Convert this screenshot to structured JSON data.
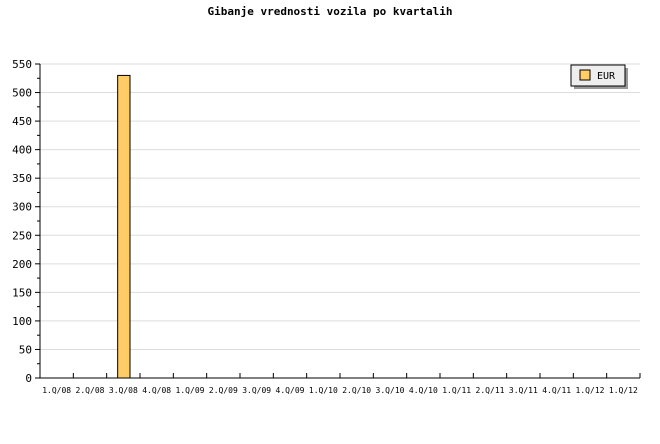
{
  "chart_data": {
    "type": "bar",
    "title": "Gibanje vrednosti vozila po kvartalih",
    "categories": [
      "1.Q/08",
      "2.Q/08",
      "3.Q/08",
      "4.Q/08",
      "1.Q/09",
      "2.Q/09",
      "3.Q/09",
      "4.Q/09",
      "1.Q/10",
      "2.Q/10",
      "3.Q/10",
      "4.Q/10",
      "1.Q/11",
      "2.Q/11",
      "3.Q/11",
      "4.Q/11",
      "1.Q/12",
      "1.Q/12"
    ],
    "series": [
      {
        "name": "EUR",
        "values": [
          0,
          0,
          530,
          0,
          0,
          0,
          0,
          0,
          0,
          0,
          0,
          0,
          0,
          0,
          0,
          0,
          0,
          0
        ],
        "color": "#ffcc66"
      }
    ],
    "xlabel": "",
    "ylabel": "",
    "ylim": [
      0,
      550
    ],
    "yticks": [
      0,
      50,
      100,
      150,
      200,
      250,
      300,
      350,
      400,
      450,
      500,
      550
    ],
    "grid": true,
    "legend": "top-right"
  }
}
